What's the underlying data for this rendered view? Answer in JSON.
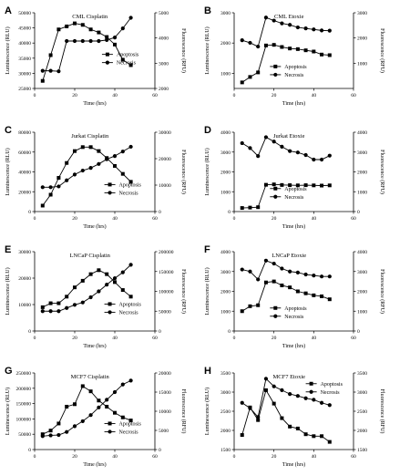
{
  "figure": {
    "axis_labels": {
      "x": "Time (hrs)",
      "y_left": "Luminescence (RLU)",
      "y_right": "Fluorescence (RFU)"
    },
    "legend": {
      "apoptosis": "Apoptosis",
      "necrosis": "Necrosis"
    },
    "colors": {
      "line": "#000000",
      "background": "#ffffff"
    },
    "markers": {
      "apoptosis": "square",
      "necrosis": "circle"
    }
  },
  "chart_data": [
    {
      "type": "line",
      "panel": "A",
      "title": "CML Cisplatin",
      "xlim": [
        0,
        60
      ],
      "xticks": [
        0,
        20,
        40,
        60
      ],
      "ylim_left": [
        25000,
        50000
      ],
      "yticks_left": [
        25000,
        30000,
        35000,
        40000,
        45000,
        50000
      ],
      "ylim_right": [
        2000,
        5000
      ],
      "yticks_right": [
        2000,
        3000,
        4000,
        5000
      ],
      "legend_position": "middle-right",
      "series": [
        {
          "name": "Apoptosis",
          "axis": "left",
          "marker": "square",
          "x": [
            4,
            8,
            12,
            16,
            20,
            24,
            28,
            32,
            36,
            40,
            44,
            48
          ],
          "y": [
            27500,
            36000,
            44500,
            45500,
            46500,
            46000,
            44500,
            43500,
            42000,
            39500,
            34500,
            32700
          ]
        },
        {
          "name": "Necrosis",
          "axis": "right",
          "marker": "circle",
          "x": [
            4,
            8,
            12,
            16,
            20,
            24,
            28,
            32,
            36,
            40,
            44,
            48
          ],
          "y": [
            2700,
            2700,
            2680,
            3880,
            3880,
            3880,
            3880,
            3880,
            3920,
            4020,
            4380,
            4800
          ]
        }
      ]
    },
    {
      "type": "line",
      "panel": "B",
      "title": "CML Etoxie",
      "xlim": [
        0,
        60
      ],
      "xticks": [
        0,
        20,
        40,
        60
      ],
      "ylim_left": [
        500,
        3000
      ],
      "yticks_left": [
        1000,
        2000,
        3000
      ],
      "ylim_right": [
        0,
        3000
      ],
      "yticks_right": [
        1000,
        2000,
        3000
      ],
      "legend_position": "bottom-center",
      "series": [
        {
          "name": "Apoptosis",
          "axis": "left",
          "marker": "square",
          "x": [
            4,
            8,
            12,
            16,
            20,
            24,
            28,
            32,
            36,
            40,
            44,
            48
          ],
          "y": [
            700,
            880,
            1030,
            1920,
            1940,
            1870,
            1820,
            1800,
            1760,
            1720,
            1620,
            1600
          ]
        },
        {
          "name": "Necrosis",
          "axis": "right",
          "marker": "circle",
          "x": [
            4,
            8,
            12,
            16,
            20,
            24,
            28,
            32,
            36,
            40,
            44,
            48
          ],
          "y": [
            1910,
            1810,
            1660,
            2810,
            2690,
            2580,
            2520,
            2420,
            2380,
            2340,
            2300,
            2290
          ]
        }
      ]
    },
    {
      "type": "line",
      "panel": "C",
      "title": "Jurkat Cisplatin",
      "xlim": [
        0,
        60
      ],
      "xticks": [
        0,
        20,
        40,
        60
      ],
      "ylim_left": [
        0,
        80000
      ],
      "yticks_left": [
        0,
        20000,
        40000,
        60000,
        80000
      ],
      "ylim_right": [
        0,
        30000
      ],
      "yticks_right": [
        0,
        10000,
        20000,
        30000
      ],
      "legend_position": "bottom-right",
      "series": [
        {
          "name": "Apoptosis",
          "axis": "left",
          "marker": "square",
          "x": [
            4,
            8,
            12,
            16,
            20,
            24,
            28,
            32,
            36,
            40,
            44,
            48
          ],
          "y": [
            6000,
            17000,
            34000,
            49000,
            61000,
            65000,
            65000,
            61000,
            54000,
            46000,
            38000,
            30000
          ]
        },
        {
          "name": "Necrosis",
          "axis": "right",
          "marker": "circle",
          "x": [
            4,
            8,
            12,
            16,
            20,
            24,
            28,
            32,
            36,
            40,
            44,
            48
          ],
          "y": [
            9200,
            9200,
            9500,
            11800,
            14000,
            15500,
            16500,
            18000,
            19800,
            21000,
            22700,
            24500
          ]
        }
      ]
    },
    {
      "type": "line",
      "panel": "D",
      "title": "Jurkat Etoxie",
      "xlim": [
        0,
        60
      ],
      "xticks": [
        0,
        20,
        40,
        60
      ],
      "ylim_left": [
        0,
        4000
      ],
      "yticks_left": [
        0,
        1000,
        2000,
        3000,
        4000
      ],
      "ylim_right": [
        0,
        4000
      ],
      "yticks_right": [
        0,
        1000,
        2000,
        3000,
        4000
      ],
      "legend_position": "bottom-center",
      "series": [
        {
          "name": "Apoptosis",
          "axis": "left",
          "marker": "square",
          "x": [
            4,
            8,
            12,
            16,
            20,
            24,
            28,
            32,
            36,
            40,
            44,
            48
          ],
          "y": [
            180,
            200,
            220,
            1350,
            1370,
            1340,
            1330,
            1320,
            1330,
            1320,
            1310,
            1320
          ]
        },
        {
          "name": "Necrosis",
          "axis": "right",
          "marker": "circle",
          "x": [
            4,
            8,
            12,
            16,
            20,
            24,
            28,
            32,
            36,
            40,
            44,
            48
          ],
          "y": [
            3450,
            3200,
            2800,
            3750,
            3530,
            3270,
            3050,
            2980,
            2850,
            2620,
            2620,
            2820
          ]
        }
      ]
    },
    {
      "type": "line",
      "panel": "E",
      "title": "LNCaP Cisplatin",
      "xlim": [
        0,
        60
      ],
      "xticks": [
        0,
        20,
        40,
        60
      ],
      "ylim_left": [
        0,
        30000
      ],
      "yticks_left": [
        0,
        10000,
        20000,
        30000
      ],
      "ylim_right": [
        0,
        200000
      ],
      "yticks_right": [
        0,
        50000,
        100000,
        150000,
        200000
      ],
      "legend_position": "bottom-right",
      "series": [
        {
          "name": "Apoptosis",
          "axis": "left",
          "marker": "square",
          "x": [
            4,
            8,
            12,
            16,
            20,
            24,
            28,
            32,
            36,
            40,
            44,
            48
          ],
          "y": [
            9000,
            10500,
            10500,
            13000,
            16500,
            19000,
            21500,
            23000,
            21500,
            18500,
            15500,
            13000
          ]
        },
        {
          "name": "Necrosis",
          "axis": "right",
          "marker": "circle",
          "x": [
            4,
            8,
            12,
            16,
            20,
            24,
            28,
            32,
            36,
            40,
            44,
            48
          ],
          "y": [
            50000,
            50000,
            50000,
            58000,
            66000,
            72000,
            85000,
            100000,
            117000,
            133000,
            148000,
            167000
          ]
        }
      ]
    },
    {
      "type": "line",
      "panel": "F",
      "title": "LNCaP Etoxie",
      "xlim": [
        0,
        60
      ],
      "xticks": [
        0,
        20,
        40,
        60
      ],
      "ylim_left": [
        0,
        4000
      ],
      "yticks_left": [
        0,
        1000,
        2000,
        3000,
        4000
      ],
      "ylim_right": [
        0,
        4000
      ],
      "yticks_right": [
        0,
        1000,
        2000,
        3000,
        4000
      ],
      "legend_position": "bottom-center",
      "series": [
        {
          "name": "Apoptosis",
          "axis": "left",
          "marker": "square",
          "x": [
            4,
            8,
            12,
            16,
            20,
            24,
            28,
            32,
            36,
            40,
            44,
            48
          ],
          "y": [
            1000,
            1250,
            1300,
            2450,
            2500,
            2300,
            2200,
            2000,
            1900,
            1800,
            1750,
            1600
          ]
        },
        {
          "name": "Necrosis",
          "axis": "right",
          "marker": "circle",
          "x": [
            4,
            8,
            12,
            16,
            20,
            24,
            28,
            32,
            36,
            40,
            44,
            48
          ],
          "y": [
            3100,
            3000,
            2600,
            3550,
            3400,
            3150,
            3000,
            2950,
            2850,
            2800,
            2750,
            2750
          ]
        }
      ]
    },
    {
      "type": "line",
      "panel": "G",
      "title": "MCF7 Cisplatin",
      "xlim": [
        0,
        60
      ],
      "xticks": [
        0,
        20,
        40,
        60
      ],
      "ylim_left": [
        0,
        250000
      ],
      "yticks_left": [
        0,
        50000,
        100000,
        150000,
        200000,
        250000
      ],
      "ylim_right": [
        0,
        20000
      ],
      "yticks_right": [
        0,
        5000,
        10000,
        15000,
        20000
      ],
      "legend_position": "bottom-right",
      "series": [
        {
          "name": "Apoptosis",
          "axis": "left",
          "marker": "square",
          "x": [
            4,
            8,
            12,
            16,
            20,
            24,
            28,
            32,
            36,
            40,
            44,
            48
          ],
          "y": [
            50000,
            62000,
            85000,
            140000,
            148000,
            207000,
            190000,
            160000,
            140000,
            120000,
            105000,
            95000
          ]
        },
        {
          "name": "Necrosis",
          "axis": "right",
          "marker": "circle",
          "x": [
            4,
            8,
            12,
            16,
            20,
            24,
            28,
            32,
            36,
            40,
            44,
            48
          ],
          "y": [
            3500,
            3700,
            3800,
            4600,
            6100,
            7400,
            9000,
            11000,
            13000,
            15000,
            17000,
            18000
          ]
        }
      ]
    },
    {
      "type": "line",
      "panel": "H",
      "title": "MCF7 Etoxie",
      "xlim": [
        0,
        60
      ],
      "xticks": [
        0,
        20,
        40,
        60
      ],
      "ylim_left": [
        1500,
        3500
      ],
      "yticks_left": [
        1500,
        2000,
        2500,
        3000,
        3500
      ],
      "ylim_right": [
        1500,
        3500
      ],
      "yticks_right": [
        1500,
        2000,
        2500,
        3000,
        3500
      ],
      "legend_position": "top-right",
      "series": [
        {
          "name": "Apoptosis",
          "axis": "left",
          "marker": "square",
          "x": [
            4,
            8,
            12,
            16,
            20,
            24,
            28,
            32,
            36,
            40,
            44,
            48
          ],
          "y": [
            1880,
            2600,
            2270,
            3050,
            2700,
            2320,
            2100,
            2050,
            1900,
            1850,
            1850,
            1700
          ]
        },
        {
          "name": "Necrosis",
          "axis": "right",
          "marker": "circle",
          "x": [
            4,
            8,
            12,
            16,
            20,
            24,
            28,
            32,
            36,
            40,
            44,
            48
          ],
          "y": [
            2720,
            2580,
            2350,
            3350,
            3150,
            3050,
            2950,
            2900,
            2840,
            2800,
            2720,
            2660
          ]
        }
      ]
    }
  ]
}
